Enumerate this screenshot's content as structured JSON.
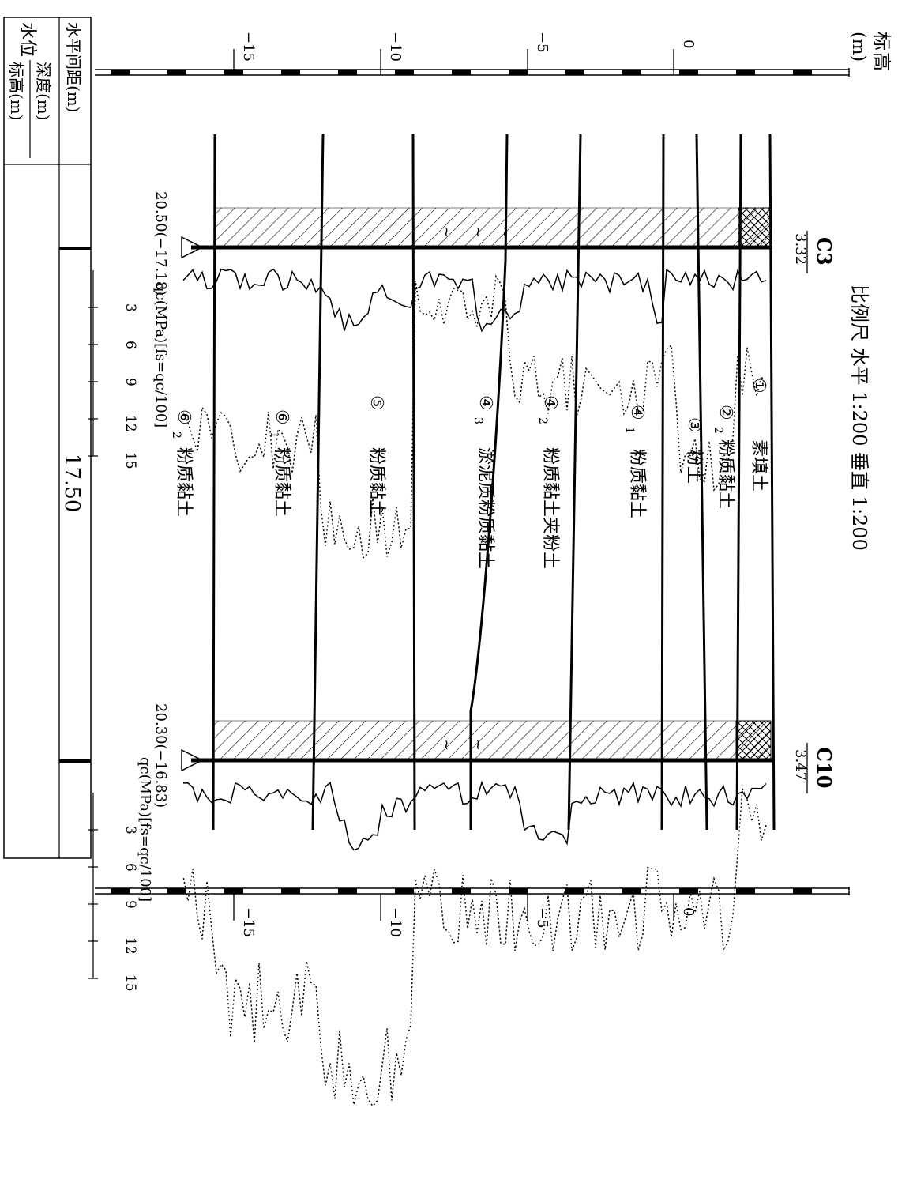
{
  "title": {
    "scale": "比例尺 水平 1:200 垂直 1:200"
  },
  "axis": {
    "title_chars": [
      "标",
      "高"
    ],
    "unit": "(m)",
    "ticks": [
      "0",
      "−5",
      "−10",
      "−15"
    ]
  },
  "boreholes": [
    {
      "id": "C3",
      "elevation": "3.32",
      "depth_label": "20.50(−17.18)",
      "qc_label": "qc(MPa)[fs=qc/100]",
      "scale_ticks": [
        "3",
        "6",
        "9",
        "12",
        "15"
      ]
    },
    {
      "id": "C10",
      "elevation": "3.47",
      "depth_label": "20.30(−16.83)",
      "qc_label": "qc(MPa)[fs=qc/100]",
      "scale_ticks": [
        "3",
        "6",
        "9",
        "12",
        "15"
      ]
    }
  ],
  "layers": [
    {
      "num": "①",
      "sub": "",
      "name": "素填土"
    },
    {
      "num": "②",
      "sub": "2",
      "name": "粉质黏土"
    },
    {
      "num": "③",
      "sub": "",
      "name": "粉土"
    },
    {
      "num": "④",
      "sub": "1",
      "name": "粉质黏土"
    },
    {
      "num": "④",
      "sub": "2",
      "name": "粉质黏土夹粉土"
    },
    {
      "num": "④",
      "sub": "3",
      "name": "淤泥质粉质黏土"
    },
    {
      "num": "⑤",
      "sub": "",
      "name": "粉质黏土"
    },
    {
      "num": "⑥",
      "sub": "1",
      "name": "粉质黏土"
    },
    {
      "num": "⑥",
      "sub": "2",
      "name": "粉质黏土"
    }
  ],
  "table": {
    "row_spacing": "水平间距(m)",
    "row_depth_prefix": "水位",
    "row_depth_top": "深度(m)",
    "row_depth_bottom": "标高(m)",
    "spacing_value": "17.50"
  }
}
